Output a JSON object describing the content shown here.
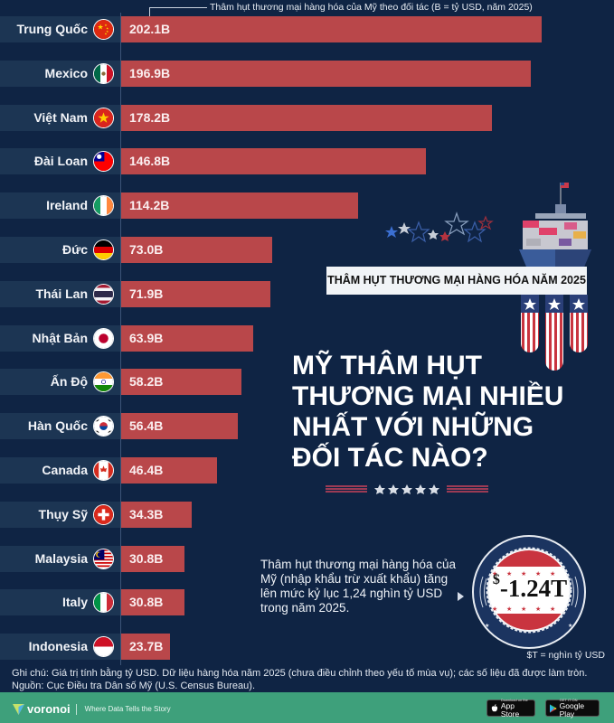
{
  "chart_subtitle": "Thâm hụt thương mại hàng hóa của Mỹ theo đối tác (B = tỷ USD, năm 2025)",
  "banner": "THÂM HỤT THƯƠNG MẠI HÀNG HÓA NĂM 2025",
  "headline": {
    "line1": "MỸ THÂM HỤT",
    "line2": "THƯƠNG MẠI NHIỀU",
    "line3": "NHẤT VỚI NHỮNG",
    "line4": "ĐỐI TÁC NÀO?"
  },
  "summary": {
    "description": "Thâm hụt thương mại hàng hóa của Mỹ (nhập khẩu trừ xuất khẩu) tăng lên mức kỷ lục 1,24 nghìn tỷ USD trong năm 2025.",
    "badge_currency": "$",
    "badge_value": "-1.24T",
    "unit_note": "$T = nghìn tỷ USD"
  },
  "notes": {
    "note": "Ghi chú: Giá trị tính bằng tỷ USD. Dữ liệu hàng hóa năm 2025 (chưa điều chỉnh theo yếu tố mùa vụ); các số liệu đã được làm tròn.",
    "source": "Nguồn: Cục Điều tra Dân số Mỹ (U.S. Census Bureau)."
  },
  "footer": {
    "brand": "voronoi",
    "tagline": "Where Data Tells the Story",
    "app_store_small": "Download on the",
    "app_store_large": "App Store",
    "google_play_small": "GET IT ON",
    "google_play_large": "Google Play"
  },
  "colors": {
    "background": "#0f2444",
    "bar": "#b9474a",
    "label_bg": "#1c3553",
    "footer": "#3ea07b"
  },
  "rows": [
    {
      "label": "Trung Quốc",
      "value_text": "202.1B",
      "flag": "china-flag"
    },
    {
      "label": "Mexico",
      "value_text": "196.9B",
      "flag": "mexico-flag"
    },
    {
      "label": "Việt Nam",
      "value_text": "178.2B",
      "flag": "vietnam-flag"
    },
    {
      "label": "Đài Loan",
      "value_text": "146.8B",
      "flag": "taiwan-flag"
    },
    {
      "label": "Ireland",
      "value_text": "114.2B",
      "flag": "ireland-flag"
    },
    {
      "label": "Đức",
      "value_text": "73.0B",
      "flag": "germany-flag"
    },
    {
      "label": "Thái Lan",
      "value_text": "71.9B",
      "flag": "thailand-flag"
    },
    {
      "label": "Nhật Bản",
      "value_text": "63.9B",
      "flag": "japan-flag"
    },
    {
      "label": "Ấn Độ",
      "value_text": "58.2B",
      "flag": "india-flag"
    },
    {
      "label": "Hàn Quốc",
      "value_text": "56.4B",
      "flag": "south-korea-flag"
    },
    {
      "label": "Canada",
      "value_text": "46.4B",
      "flag": "canada-flag"
    },
    {
      "label": "Thụy Sỹ",
      "value_text": "34.3B",
      "flag": "switzerland-flag"
    },
    {
      "label": "Malaysia",
      "value_text": "30.8B",
      "flag": "malaysia-flag"
    },
    {
      "label": "Italy",
      "value_text": "30.8B",
      "flag": "italy-flag"
    },
    {
      "label": "Indonesia",
      "value_text": "23.7B",
      "flag": "indonesia-flag"
    }
  ],
  "chart_data": {
    "type": "bar",
    "orientation": "horizontal",
    "title": "Mỹ thâm hụt thương mại nhiều nhất với những đối tác nào?",
    "subtitle": "Thâm hụt thương mại hàng hóa của Mỹ theo đối tác (B = tỷ USD, năm 2025)",
    "categories": [
      "Trung Quốc",
      "Mexico",
      "Việt Nam",
      "Đài Loan",
      "Ireland",
      "Đức",
      "Thái Lan",
      "Nhật Bản",
      "Ấn Độ",
      "Hàn Quốc",
      "Canada",
      "Thụy Sỹ",
      "Malaysia",
      "Italy",
      "Indonesia"
    ],
    "values": [
      202.1,
      196.9,
      178.2,
      146.8,
      114.2,
      73.0,
      71.9,
      63.9,
      58.2,
      56.4,
      46.4,
      34.3,
      30.8,
      30.8,
      23.7
    ],
    "unit": "B USD",
    "xlabel": "",
    "ylabel": "",
    "grid": false,
    "legend": null,
    "annotations": [
      "Total US goods trade deficit 2025: -$1.24T"
    ]
  }
}
